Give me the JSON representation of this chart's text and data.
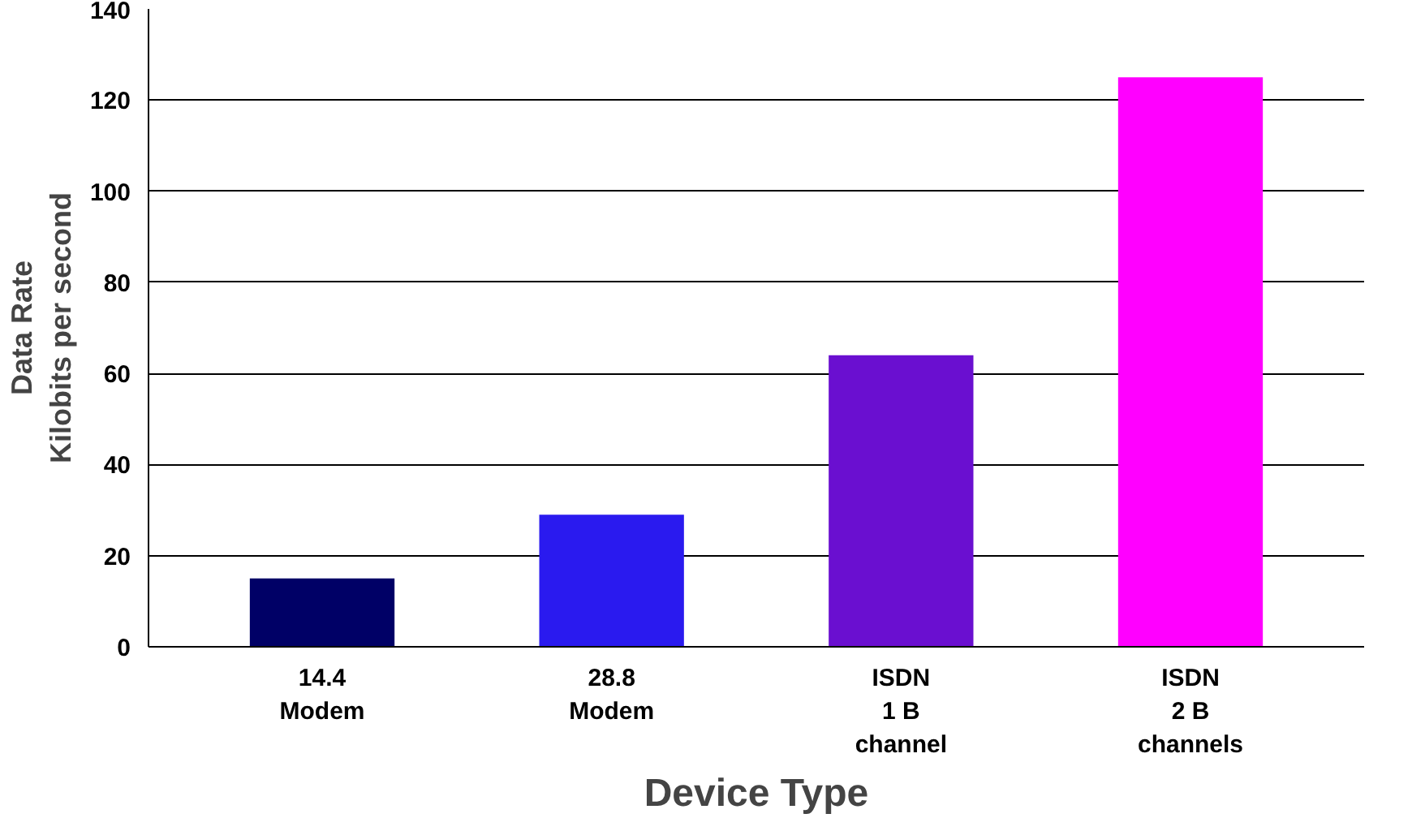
{
  "chart_data": {
    "type": "bar",
    "xlabel": "Device Type",
    "ylabel": "Data Rate\nKilobits per second",
    "categories": [
      "14.4\nModem",
      "28.8\nModem",
      "ISDN\n1 B\nchannel",
      "ISDN\n2 B\nchannels"
    ],
    "values": [
      15,
      29,
      64,
      125
    ],
    "colors": [
      "#000066",
      "#2a1aef",
      "#6a0fd0",
      "#ff00ff"
    ],
    "ylim": [
      0,
      140
    ],
    "yticks": [
      0,
      20,
      40,
      60,
      80,
      100,
      120,
      140
    ],
    "grid": "y"
  }
}
